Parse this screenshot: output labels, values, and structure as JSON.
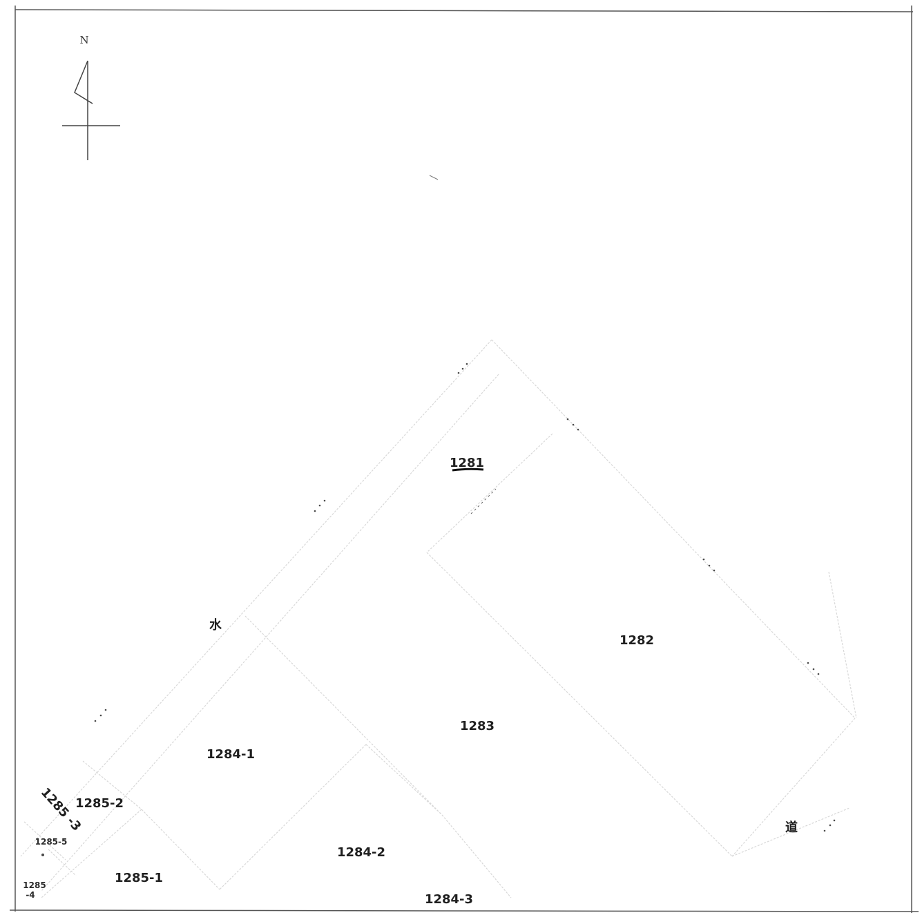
{
  "north_arrow": {
    "label": "N",
    "icon": "north-arrow-icon"
  },
  "lots": {
    "lot_1281": "1281",
    "lot_1282": "1282",
    "lot_1283": "1283",
    "lot_1284_1": "1284-1",
    "lot_1284_2": "1284-2",
    "lot_1284_3": "1284-3",
    "lot_1285_1": "1285-1",
    "lot_1285_2": "1285-2",
    "lot_1285_3": "1285 -3",
    "lot_1285_4_a": "1285",
    "lot_1285_4_b": "-4",
    "lot_1285_5": "1285-5"
  },
  "features": {
    "water": "水",
    "road": "道"
  },
  "colors": {
    "frame": "#555555",
    "parcel_lines": "#d8d8d8",
    "text": "#1f1f1f",
    "highlight_underline": "#111111"
  }
}
